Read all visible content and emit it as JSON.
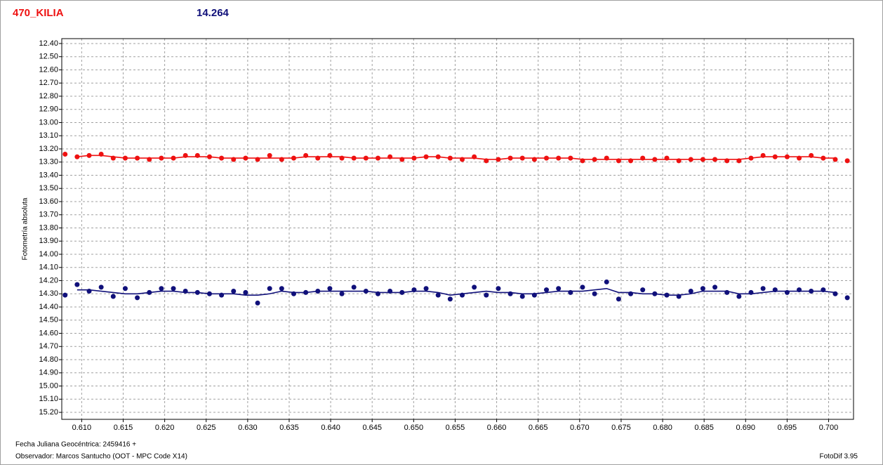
{
  "header": {
    "title": "470_KILIA",
    "magnitude": 14.264
  },
  "chart_data": {
    "type": "scatter",
    "y_label": "Fotometría absoluta",
    "xlim": [
      0.6076,
      0.703
    ],
    "ylim": [
      12.363,
      15.253
    ],
    "y_inverted": true,
    "grid": true,
    "xticks": [
      {
        "value": 0.61,
        "label": "0.610"
      },
      0.615,
      {
        "value": 0.62,
        "label": "0.620"
      },
      0.625,
      {
        "value": 0.63,
        "label": "0.630"
      },
      0.635,
      {
        "value": 0.64,
        "label": "0.640"
      },
      0.645,
      {
        "value": 0.65,
        "label": "0.650"
      },
      0.655,
      {
        "value": 0.66,
        "label": "0.660"
      },
      0.665,
      {
        "value": 0.67,
        "label": "0.670"
      },
      0.675,
      {
        "value": 0.68,
        "label": "0.680"
      },
      0.685,
      {
        "value": 0.69,
        "label": "0.690"
      },
      0.695,
      {
        "value": 0.7,
        "label": "0.700"
      }
    ],
    "yticks": [
      {
        "value": 12.4,
        "label": "12.40"
      },
      {
        "value": 12.5,
        "label": "12.50"
      },
      {
        "value": 12.6,
        "label": "12.60"
      },
      {
        "value": 12.7,
        "label": "12.70"
      },
      {
        "value": 12.8,
        "label": "12.80"
      },
      {
        "value": 12.9,
        "label": "12.90"
      },
      {
        "value": 13.0,
        "label": "13.00"
      },
      {
        "value": 13.1,
        "label": "13.10"
      },
      {
        "value": 13.2,
        "label": "13.20"
      },
      {
        "value": 13.3,
        "label": "13.30"
      },
      {
        "value": 13.4,
        "label": "13.40"
      },
      {
        "value": 13.5,
        "label": "13.50"
      },
      {
        "value": 13.6,
        "label": "13.60"
      },
      {
        "value": 13.7,
        "label": "13.70"
      },
      {
        "value": 13.8,
        "label": "13.80"
      },
      {
        "value": 13.9,
        "label": "13.90"
      },
      {
        "value": 14.0,
        "label": "14.00"
      },
      {
        "value": 14.1,
        "label": "14.10"
      },
      {
        "value": 14.2,
        "label": "14.20"
      },
      {
        "value": 14.3,
        "label": "14.30"
      },
      {
        "value": 14.4,
        "label": "14.40"
      },
      {
        "value": 14.5,
        "label": "14.50"
      },
      {
        "value": 14.6,
        "label": "14.60"
      },
      {
        "value": 14.7,
        "label": "14.70"
      },
      {
        "value": 14.8,
        "label": "14.80"
      },
      {
        "value": 14.9,
        "label": "14.90"
      },
      {
        "value": 15.0,
        "label": "15.00"
      },
      {
        "value": 15.1,
        "label": "15.10"
      },
      {
        "value": 15.2,
        "label": "15.20"
      }
    ],
    "x": [
      0.608,
      0.60945,
      0.6109,
      0.61235,
      0.6138,
      0.61525,
      0.6167,
      0.61815,
      0.6196,
      0.62105,
      0.6225,
      0.62395,
      0.6254,
      0.62685,
      0.6283,
      0.62975,
      0.6312,
      0.63265,
      0.6341,
      0.63555,
      0.637,
      0.63845,
      0.6399,
      0.64135,
      0.6428,
      0.64425,
      0.6457,
      0.64715,
      0.6486,
      0.65005,
      0.6515,
      0.65295,
      0.6544,
      0.65585,
      0.6573,
      0.65875,
      0.6602,
      0.66165,
      0.6631,
      0.66455,
      0.666,
      0.66745,
      0.6689,
      0.67035,
      0.6718,
      0.67325,
      0.6747,
      0.67615,
      0.6776,
      0.67905,
      0.6805,
      0.68195,
      0.6834,
      0.68485,
      0.6863,
      0.68775,
      0.6892,
      0.69065,
      0.6921,
      0.69355,
      0.695,
      0.69645,
      0.6979,
      0.69935,
      0.7008,
      0.70225
    ],
    "series": [
      {
        "mode": "markers",
        "color": "#ee1111",
        "values": [
          13.24,
          13.26,
          13.25,
          13.24,
          13.27,
          13.27,
          13.27,
          13.28,
          13.27,
          13.27,
          13.25,
          13.25,
          13.26,
          13.27,
          13.28,
          13.27,
          13.28,
          13.25,
          13.28,
          13.27,
          13.25,
          13.27,
          13.25,
          13.27,
          13.27,
          13.27,
          13.27,
          13.26,
          13.28,
          13.27,
          13.26,
          13.26,
          13.27,
          13.28,
          13.26,
          13.29,
          13.28,
          13.27,
          13.27,
          13.28,
          13.27,
          13.27,
          13.27,
          13.29,
          13.28,
          13.27,
          13.29,
          13.29,
          13.27,
          13.28,
          13.27,
          13.29,
          13.28,
          13.28,
          13.28,
          13.29,
          13.29,
          13.27,
          13.25,
          13.26,
          13.26,
          13.27,
          13.25,
          13.27,
          13.28,
          13.29
        ]
      },
      {
        "mode": "line",
        "color": "#ee1111",
        "values": [
          null,
          13.26,
          13.25,
          13.25,
          13.26,
          13.27,
          13.27,
          13.27,
          13.27,
          13.27,
          13.26,
          13.26,
          13.26,
          13.27,
          13.27,
          13.27,
          13.27,
          13.27,
          13.27,
          13.27,
          13.26,
          13.26,
          13.26,
          13.26,
          13.27,
          13.27,
          13.27,
          13.27,
          13.27,
          13.27,
          13.26,
          13.26,
          13.27,
          13.27,
          13.27,
          13.28,
          13.28,
          13.27,
          13.27,
          13.27,
          13.27,
          13.27,
          13.27,
          13.28,
          13.28,
          13.28,
          13.28,
          13.28,
          13.28,
          13.28,
          13.28,
          13.28,
          13.28,
          13.28,
          13.28,
          13.28,
          13.28,
          13.27,
          13.26,
          13.26,
          13.26,
          13.26,
          13.26,
          13.27,
          13.27,
          null
        ]
      },
      {
        "mode": "markers",
        "color": "#10107a",
        "values": [
          14.31,
          14.23,
          14.28,
          14.25,
          14.32,
          14.26,
          14.33,
          14.29,
          14.26,
          14.26,
          14.28,
          14.29,
          14.3,
          14.31,
          14.28,
          14.29,
          14.37,
          14.26,
          14.26,
          14.3,
          14.29,
          14.28,
          14.26,
          14.3,
          14.25,
          14.28,
          14.3,
          14.28,
          14.29,
          14.27,
          14.26,
          14.31,
          14.34,
          14.31,
          14.25,
          14.31,
          14.26,
          14.3,
          14.32,
          14.31,
          14.27,
          14.26,
          14.29,
          14.25,
          14.3,
          14.21,
          14.34,
          14.3,
          14.27,
          14.3,
          14.31,
          14.32,
          14.28,
          14.26,
          14.25,
          14.29,
          14.32,
          14.29,
          14.26,
          14.27,
          14.29,
          14.27,
          14.28,
          14.27,
          14.3,
          14.33
        ]
      },
      {
        "mode": "line",
        "color": "#10107a",
        "values": [
          null,
          14.27,
          14.27,
          14.28,
          14.29,
          14.3,
          14.3,
          14.29,
          14.28,
          14.28,
          14.29,
          14.29,
          14.3,
          14.3,
          14.3,
          14.31,
          14.31,
          14.3,
          14.28,
          14.29,
          14.29,
          14.28,
          14.28,
          14.28,
          14.28,
          14.28,
          14.29,
          14.29,
          14.29,
          14.28,
          14.28,
          14.29,
          14.31,
          14.3,
          14.29,
          14.28,
          14.29,
          14.29,
          14.3,
          14.3,
          14.29,
          14.28,
          14.28,
          14.28,
          14.27,
          14.26,
          14.29,
          14.29,
          14.3,
          14.3,
          14.31,
          14.31,
          14.3,
          14.28,
          14.28,
          14.28,
          14.3,
          14.3,
          14.29,
          14.28,
          14.28,
          14.28,
          14.28,
          14.28,
          14.29,
          null
        ]
      }
    ]
  },
  "footer": {
    "date_label": "Fecha Juliana Geocéntrica: 2459416 +",
    "observer": "Observador: Marcos Santucho (OOT - MPC Code X14)",
    "software": "FotoDif 3.95"
  }
}
